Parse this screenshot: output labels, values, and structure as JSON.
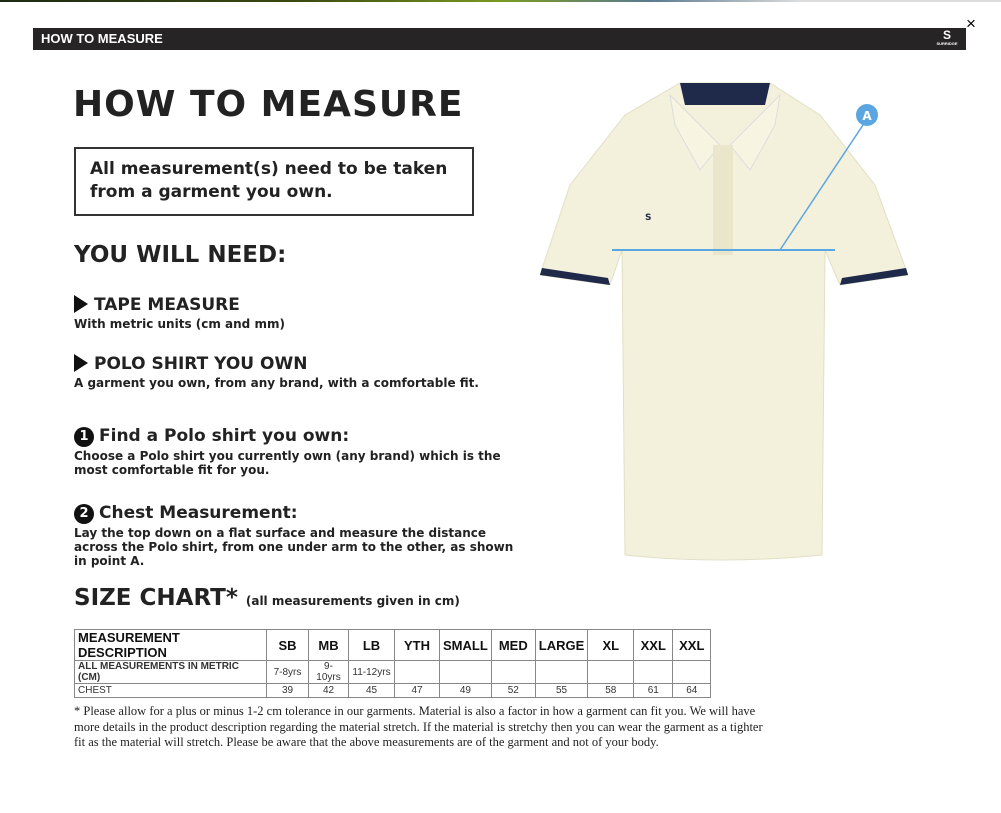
{
  "window": {
    "close_label": "×",
    "header_title": "HOW TO MEASURE",
    "brand": "SURRIDGE"
  },
  "guide": {
    "title": "HOW TO MEASURE",
    "note": "All measurement(s) need to be taken from a garment you own.",
    "need_heading": "YOU WILL NEED:",
    "needs": [
      {
        "title": "TAPE MEASURE",
        "desc": "With metric units (cm and mm)"
      },
      {
        "title": "POLO SHIRT YOU OWN",
        "desc": "A garment you own, from any brand, with a comfortable fit."
      }
    ],
    "steps": [
      {
        "num": "1",
        "title": "Find a Polo shirt you own:",
        "desc": "Choose a Polo shirt you currently own (any brand) which is the most comfortable fit for you."
      },
      {
        "num": "2",
        "title": "Chest Measurement:",
        "desc": "Lay the top down on a flat surface and measure the distance across the Polo shirt, from one under arm to the other, as shown in point A."
      }
    ],
    "point_label": "A",
    "size_chart_title": "SIZE CHART*",
    "size_chart_sub": "(all measurements given in cm)"
  },
  "size_table": {
    "headers": [
      "MEASUREMENT DESCRIPTION",
      "SB",
      "MB",
      "LB",
      "YTH",
      "SMALL",
      "MED",
      "LARGE",
      "XL",
      "XXL",
      "XXL"
    ],
    "rows": [
      [
        "ALL MEASUREMENTS IN METRIC (CM)",
        "7-8yrs",
        "9-10yrs",
        "11-12yrs",
        "",
        "",
        "",
        "",
        "",
        "",
        ""
      ],
      [
        "CHEST",
        "39",
        "42",
        "45",
        "47",
        "49",
        "52",
        "55",
        "58",
        "61",
        "64"
      ]
    ]
  },
  "footnote": "* Please allow for a plus or minus 1-2 cm tolerance in our garments. Material is also a factor in how a garment can fit you. We will have more details in the product description regarding the material stretch.  If the material is stretchy then you can wear the garment as a tighter fit as the material will stretch.  Please be aware that the above measurements are of the garment and not of your body.",
  "colors": {
    "header_bar": "#262424",
    "shirt": "#f3f1dc",
    "trim": "#1f2a4a",
    "measure_line": "#5aa6e0"
  }
}
